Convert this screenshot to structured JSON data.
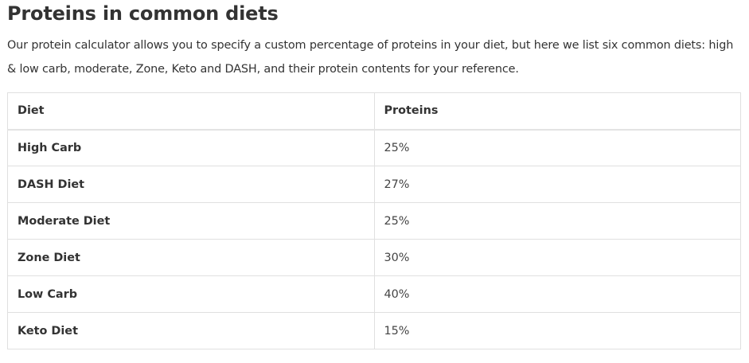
{
  "heading": "Proteins in common diets",
  "intro": "Our protein calculator allows you to specify a custom percentage of proteins in your diet, but here we list six common diets: high & low carb, moderate, Zone, Keto and DASH, and their protein contents for your reference.",
  "table": {
    "headers": [
      "Diet",
      "Proteins"
    ],
    "rows": [
      {
        "diet": "High Carb",
        "protein": "25%"
      },
      {
        "diet": "DASH Diet",
        "protein": "27%"
      },
      {
        "diet": "Moderate Diet",
        "protein": "25%"
      },
      {
        "diet": "Zone Diet",
        "protein": "30%"
      },
      {
        "diet": "Low Carb",
        "protein": "40%"
      },
      {
        "diet": "Keto Diet",
        "protein": "15%"
      }
    ]
  }
}
